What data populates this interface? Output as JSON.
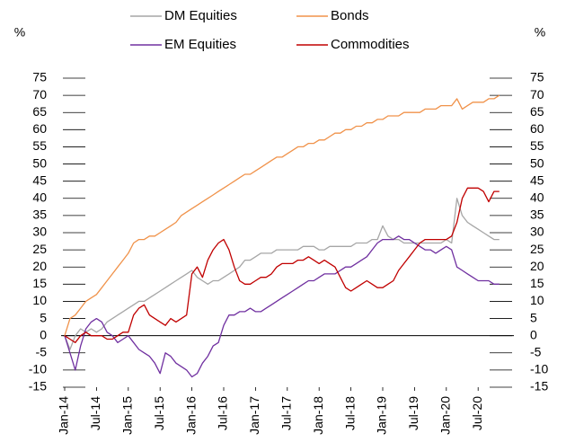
{
  "chart_data": {
    "type": "line",
    "y_label": "%",
    "y2_label": "%",
    "categories": [
      "Jan-14",
      null,
      null,
      null,
      null,
      null,
      "Jul-14",
      null,
      null,
      null,
      null,
      null,
      "Jan-15",
      null,
      null,
      null,
      null,
      null,
      "Jul-15",
      null,
      null,
      null,
      null,
      null,
      "Jan-16",
      null,
      null,
      null,
      null,
      null,
      "Jul-16",
      null,
      null,
      null,
      null,
      null,
      "Jan-17",
      null,
      null,
      null,
      null,
      null,
      "Jul-17",
      null,
      null,
      null,
      null,
      null,
      "Jan-18",
      null,
      null,
      null,
      null,
      null,
      "Jul-18",
      null,
      null,
      null,
      null,
      null,
      "Jan-19",
      null,
      null,
      null,
      null,
      null,
      "Jul-19",
      null,
      null,
      null,
      null,
      null,
      "Jan-20",
      null,
      null,
      null,
      null,
      null,
      "Jul-20",
      null,
      null,
      null,
      null
    ],
    "series": [
      {
        "name": "DM Equities",
        "color": "#a6a6a6",
        "values": [
          0,
          -4,
          0,
          2,
          1,
          2,
          1,
          2,
          4,
          5,
          6,
          7,
          8,
          9,
          10,
          10,
          11,
          12,
          13,
          14,
          15,
          16,
          17,
          18,
          19,
          17,
          16,
          15,
          16,
          16,
          17,
          18,
          19,
          20,
          22,
          22,
          23,
          24,
          24,
          24,
          25,
          25,
          25,
          25,
          25,
          26,
          26,
          26,
          25,
          25,
          26,
          26,
          26,
          26,
          26,
          27,
          27,
          27,
          28,
          28,
          32,
          29,
          28,
          28,
          27,
          27,
          27,
          27,
          27,
          27,
          27,
          27,
          28,
          27,
          40,
          35,
          33,
          32,
          31,
          30,
          29,
          28,
          28
        ]
      },
      {
        "name": "Bonds",
        "color": "#f0924a",
        "values": [
          0,
          5,
          6,
          8,
          10,
          11,
          12,
          14,
          16,
          18,
          20,
          22,
          24,
          27,
          28,
          28,
          29,
          29,
          30,
          31,
          32,
          33,
          35,
          36,
          37,
          38,
          39,
          40,
          41,
          42,
          43,
          44,
          45,
          46,
          47,
          47,
          48,
          49,
          50,
          51,
          52,
          52,
          53,
          54,
          55,
          55,
          56,
          56,
          57,
          57,
          58,
          59,
          59,
          60,
          60,
          61,
          61,
          62,
          62,
          63,
          63,
          64,
          64,
          64,
          65,
          65,
          65,
          65,
          66,
          66,
          66,
          67,
          67,
          67,
          69,
          66,
          67,
          68,
          68,
          68,
          69,
          69,
          70
        ]
      },
      {
        "name": "EM Equities",
        "color": "#7030a0",
        "values": [
          0,
          -5,
          -10,
          -3,
          2,
          4,
          5,
          4,
          1,
          0,
          -2,
          -1,
          0,
          -2,
          -4,
          -5,
          -6,
          -8,
          -11,
          -5,
          -6,
          -8,
          -9,
          -10,
          -12,
          -11,
          -8,
          -6,
          -3,
          -2,
          3,
          6,
          6,
          7,
          7,
          8,
          7,
          7,
          8,
          9,
          10,
          11,
          12,
          13,
          14,
          15,
          16,
          16,
          17,
          18,
          18,
          18,
          19,
          20,
          20,
          21,
          22,
          23,
          25,
          27,
          28,
          28,
          28,
          29,
          28,
          28,
          27,
          26,
          25,
          25,
          24,
          25,
          26,
          25,
          20,
          19,
          18,
          17,
          16,
          16,
          16,
          15,
          15
        ]
      },
      {
        "name": "Commodities",
        "color": "#c00000",
        "values": [
          0,
          -1,
          -2,
          0,
          1,
          0,
          0,
          0,
          -1,
          -1,
          0,
          1,
          1,
          6,
          8,
          9,
          6,
          5,
          4,
          3,
          5,
          4,
          5,
          6,
          18,
          20,
          17,
          22,
          25,
          27,
          28,
          25,
          20,
          16,
          15,
          15,
          16,
          17,
          17,
          18,
          20,
          21,
          21,
          21,
          22,
          22,
          23,
          22,
          21,
          22,
          21,
          20,
          17,
          14,
          13,
          14,
          15,
          16,
          15,
          14,
          14,
          15,
          16,
          19,
          21,
          23,
          25,
          27,
          28,
          28,
          28,
          28,
          28,
          29,
          33,
          40,
          43,
          43,
          43,
          42,
          39,
          42,
          42
        ]
      }
    ],
    "ylim": [
      -15,
      75
    ],
    "yticks": [
      -15,
      -10,
      -5,
      0,
      5,
      10,
      15,
      20,
      25,
      30,
      35,
      40,
      45,
      50,
      55,
      60,
      65,
      70,
      75
    ],
    "y2lim": [
      -15,
      75
    ],
    "y2ticks": [
      -15,
      -10,
      -5,
      0,
      5,
      10,
      15,
      20,
      25,
      30,
      35,
      40,
      45,
      50,
      55,
      60,
      65,
      70,
      75
    ]
  }
}
